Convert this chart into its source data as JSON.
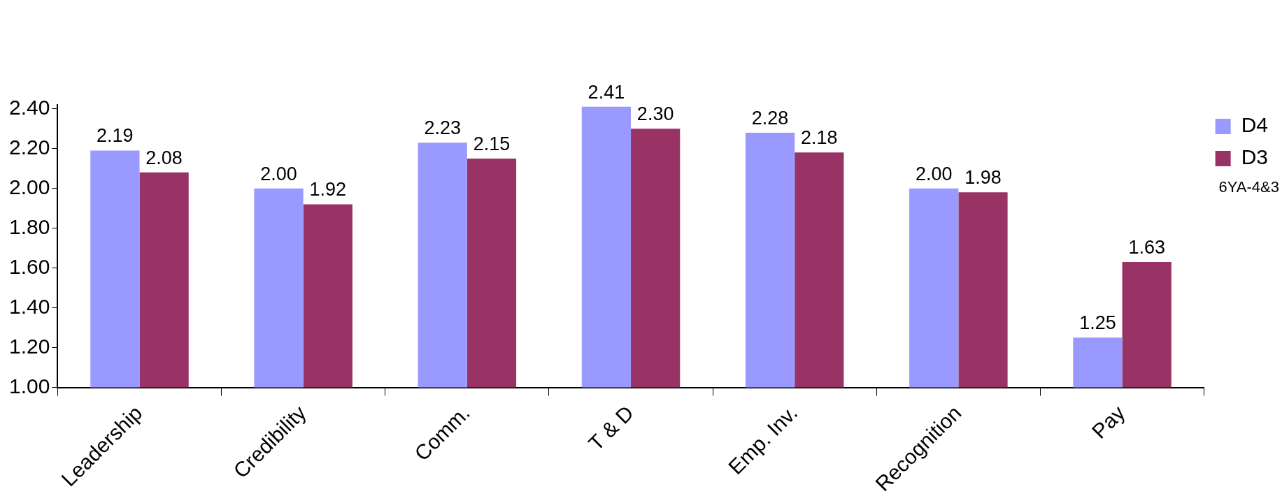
{
  "chart_data": {
    "type": "bar",
    "categories": [
      "Leadership",
      "Credibility",
      "Comm.",
      "T & D",
      "Emp. Inv.",
      "Recognition",
      "Pay"
    ],
    "series": [
      {
        "name": "D4",
        "color": "#9999ff",
        "values": [
          2.19,
          2.0,
          2.23,
          2.41,
          2.28,
          2.0,
          1.25
        ],
        "value_labels": [
          "2.19",
          "2.00",
          "2.23",
          "2.41",
          "2.28",
          "2.00",
          "1.25"
        ]
      },
      {
        "name": "D3",
        "color": "#993366",
        "values": [
          2.08,
          1.92,
          2.15,
          2.3,
          2.18,
          1.98,
          1.63
        ],
        "value_labels": [
          "2.08",
          "1.92",
          "2.15",
          "2.30",
          "2.18",
          "1.98",
          "1.63"
        ]
      }
    ],
    "ylim": [
      1.0,
      2.42
    ],
    "yticks": [
      {
        "value": 1.0,
        "label": "1.00"
      },
      {
        "value": 1.2,
        "label": "1.20"
      },
      {
        "value": 1.4,
        "label": "1.40"
      },
      {
        "value": 1.6,
        "label": "1.60"
      },
      {
        "value": 1.8,
        "label": "1.80"
      },
      {
        "value": 2.0,
        "label": "2.00"
      },
      {
        "value": 2.2,
        "label": "2.20"
      },
      {
        "value": 2.4,
        "label": "2.40"
      }
    ],
    "grid": false,
    "legend": "top right",
    "annotations": [
      "6YA-4&3"
    ]
  }
}
